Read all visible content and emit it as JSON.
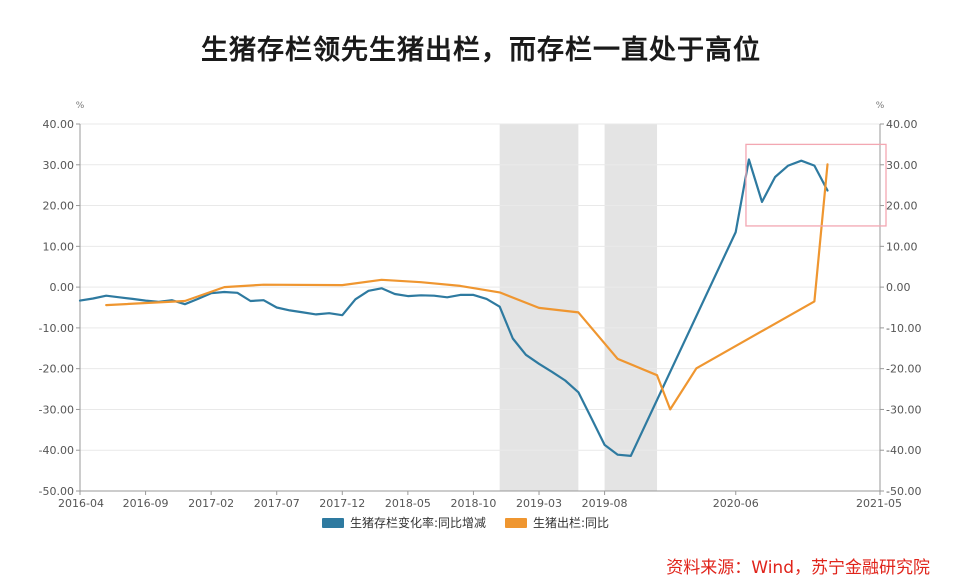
{
  "title": "生猪存栏领先生猪出栏，而存栏一直处于高位",
  "source": "资料来源：Wind，苏宁金融研究院",
  "colors": {
    "series_inventory": "#2e7aa0",
    "series_output": "#ef9630",
    "shade": "#e4e4e4",
    "highlight_box": "#f3a7b2",
    "grid": "#e9e9e9",
    "axis": "#999999"
  },
  "chart_data": {
    "type": "line",
    "title": "生猪存栏领先生猪出栏，而存栏一直处于高位",
    "y_unit_left": "%",
    "y_unit_right": "%",
    "ylim": [
      -50,
      40
    ],
    "yticks": [
      "40.00",
      "30.00",
      "20.00",
      "10.00",
      "0.00",
      "-10.00",
      "-20.00",
      "-30.00",
      "-40.00",
      "-50.00"
    ],
    "xlim": [
      "2016-04",
      "2021-05"
    ],
    "xticks": [
      "2016-04",
      "2016-09",
      "2017-02",
      "2017-07",
      "2017-12",
      "2018-05",
      "2018-10",
      "2019-03",
      "2019-08",
      "2020-06",
      "2021-05"
    ],
    "legend": "bottom-center",
    "grid": true,
    "shaded_periods": [
      [
        "2018-12",
        "2019-06"
      ],
      [
        "2019-08",
        "2019-12"
      ]
    ],
    "highlight_box": {
      "x": [
        "2020-08",
        "2021-05"
      ],
      "y": [
        15,
        35
      ]
    },
    "series": [
      {
        "name": "生猪存栏变化率:同比增减",
        "color": "#2e7aa0",
        "points": [
          [
            "2016-04",
            -3.3
          ],
          [
            "2016-05",
            -2.8
          ],
          [
            "2016-06",
            -2.1
          ],
          [
            "2016-07",
            -2.5
          ],
          [
            "2016-08",
            -2.9
          ],
          [
            "2016-09",
            -3.3
          ],
          [
            "2016-10",
            -3.6
          ],
          [
            "2016-11",
            -3.2
          ],
          [
            "2016-12",
            -4.2
          ],
          [
            "2017-01",
            -2.9
          ],
          [
            "2017-02",
            -1.5
          ],
          [
            "2017-03",
            -1.2
          ],
          [
            "2017-04",
            -1.4
          ],
          [
            "2017-05",
            -3.4
          ],
          [
            "2017-06",
            -3.2
          ],
          [
            "2017-07",
            -5.0
          ],
          [
            "2017-08",
            -5.7
          ],
          [
            "2017-09",
            -6.2
          ],
          [
            "2017-10",
            -6.7
          ],
          [
            "2017-11",
            -6.4
          ],
          [
            "2017-12",
            -6.9
          ],
          [
            "2018-01",
            -3.0
          ],
          [
            "2018-02",
            -0.9
          ],
          [
            "2018-03",
            -0.3
          ],
          [
            "2018-04",
            -1.7
          ],
          [
            "2018-05",
            -2.2
          ],
          [
            "2018-06",
            -2.0
          ],
          [
            "2018-07",
            -2.1
          ],
          [
            "2018-08",
            -2.5
          ],
          [
            "2018-09",
            -1.9
          ],
          [
            "2018-10",
            -1.9
          ],
          [
            "2018-11",
            -2.9
          ],
          [
            "2018-12",
            -4.8
          ],
          [
            "2019-01",
            -12.6
          ],
          [
            "2019-02",
            -16.6
          ],
          [
            "2019-03",
            -18.8
          ],
          [
            "2019-04",
            -20.8
          ],
          [
            "2019-05",
            -22.9
          ],
          [
            "2019-06",
            -25.8
          ],
          [
            "2019-07",
            -32.2
          ],
          [
            "2019-08",
            -38.7
          ],
          [
            "2019-09",
            -41.1
          ],
          [
            "2019-10",
            -41.4
          ],
          [
            "2020-06",
            13.5
          ],
          [
            "2020-07",
            31.3
          ],
          [
            "2020-08",
            20.9
          ],
          [
            "2020-09",
            27.0
          ],
          [
            "2020-10",
            29.8
          ],
          [
            "2020-11",
            31.0
          ],
          [
            "2020-12",
            29.8
          ],
          [
            "2021-01",
            23.7
          ]
        ]
      },
      {
        "name": "生猪出栏:同比",
        "color": "#ef9630",
        "points": [
          [
            "2016-06",
            -4.4
          ],
          [
            "2016-12",
            -3.4
          ],
          [
            "2017-03",
            0.0
          ],
          [
            "2017-06",
            0.6
          ],
          [
            "2017-12",
            0.5
          ],
          [
            "2018-03",
            1.8
          ],
          [
            "2018-06",
            1.2
          ],
          [
            "2018-09",
            0.3
          ],
          [
            "2018-12",
            -1.3
          ],
          [
            "2019-03",
            -5.1
          ],
          [
            "2019-06",
            -6.2
          ],
          [
            "2019-09",
            -17.6
          ],
          [
            "2019-12",
            -21.6
          ],
          [
            "2020-01",
            -30.0
          ],
          [
            "2020-03",
            -19.9
          ],
          [
            "2020-12",
            -3.5
          ],
          [
            "2021-01",
            30.1
          ]
        ]
      }
    ]
  }
}
